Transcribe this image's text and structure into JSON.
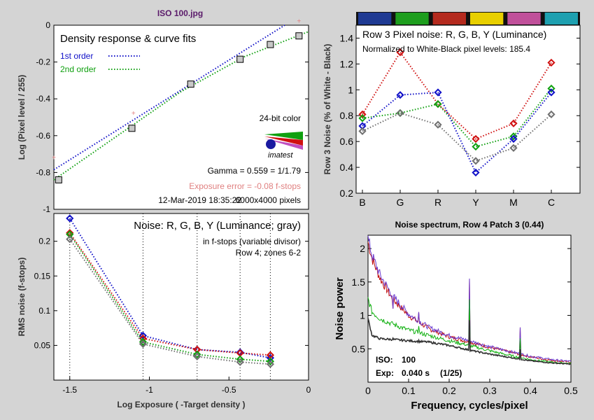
{
  "window_title": "ISO 100.jpg",
  "chart_data": [
    {
      "id": "density",
      "type": "line",
      "title": "Density response & curve fits",
      "xlabel": "",
      "ylabel": "Log (Pixel level / 255)",
      "xlim": [
        -1.6,
        0.0
      ],
      "ylim": [
        -1.0,
        0.0
      ],
      "yticks": [
        0,
        -0.2,
        -0.4,
        -0.6,
        -0.8,
        -1
      ],
      "ytick_labels": [
        "0",
        "-0.2",
        "-0.4",
        "-0.6",
        "-0.8",
        "-1"
      ],
      "legend": [
        {
          "label": "1st order",
          "color": "#1010c8"
        },
        {
          "label": "2nd order",
          "color": "#10a010"
        }
      ],
      "series": [
        {
          "name": "measured",
          "x": [
            -1.57,
            -1.11,
            -0.74,
            -0.43,
            -0.24,
            -0.06
          ],
          "y": [
            -0.84,
            -0.56,
            -0.32,
            -0.185,
            -0.105,
            -0.058
          ]
        },
        {
          "name": "ideal",
          "x": [
            -1.6,
            -1.1,
            -0.06
          ],
          "y": [
            -0.72,
            -0.48,
            0.02
          ]
        },
        {
          "name": "1st order",
          "x": [
            -1.6,
            -0.15
          ],
          "y": [
            -0.785,
            0.0
          ]
        },
        {
          "name": "2nd order",
          "x": [
            -1.6,
            -1.2,
            -0.8,
            -0.4,
            0.0
          ],
          "y": [
            -0.84,
            -0.6,
            -0.36,
            -0.17,
            -0.035
          ]
        }
      ],
      "annotations": {
        "bit_depth": "24-bit color",
        "gamma": "Gamma = 0.559 = 1/1.79",
        "exposure_error": "Exposure error = -0.08 f-stops",
        "datetime": "12-Mar-2019 18:35:22",
        "pixels": "6000x4000 pixels"
      },
      "logo_text": "imatest"
    },
    {
      "id": "row3",
      "type": "line",
      "title": "Row 3 Pixel noise: R, G, B, Y (Luminance)",
      "subtitle": "Normalized to White-Black pixel levels: 185.4",
      "ylabel": "Row 3 Noise (% of White - Black)",
      "categories": [
        "B",
        "G",
        "R",
        "Y",
        "M",
        "C"
      ],
      "ylim": [
        0.2,
        1.5
      ],
      "yticks": [
        0.2,
        0.4,
        0.6,
        0.8,
        1,
        1.2,
        1.4
      ],
      "ytick_labels": [
        "0.2",
        "0.4",
        "0.6",
        "0.8",
        "1",
        "1.2",
        "1.4"
      ],
      "patch_colors": [
        "#1f3a93",
        "#1e9e1e",
        "#b42a1e",
        "#e8cf00",
        "#c0509a",
        "#1ea0b0"
      ],
      "series": [
        {
          "name": "R",
          "color": "#d01010",
          "values": [
            0.81,
            1.29,
            0.89,
            0.62,
            0.74,
            1.21
          ]
        },
        {
          "name": "G",
          "color": "#10a010",
          "values": [
            0.78,
            0.82,
            0.89,
            0.56,
            0.64,
            1.01
          ]
        },
        {
          "name": "B",
          "color": "#1010c8",
          "values": [
            0.72,
            0.96,
            0.98,
            0.36,
            0.62,
            0.98
          ]
        },
        {
          "name": "Y",
          "color": "#707070",
          "values": [
            0.68,
            0.82,
            0.73,
            0.45,
            0.55,
            0.81
          ]
        }
      ]
    },
    {
      "id": "noise",
      "type": "line",
      "title": "Noise: R, G, B, Y (Luminance; gray)",
      "subtitle1": "in f-stops (variable divisor)",
      "subtitle2": "Row 4; zones 6-2",
      "xlabel": "Log Exposure ( -Target density )",
      "ylabel": "RMS noise (f-stops)",
      "xlim": [
        -1.6,
        0.0
      ],
      "ylim": [
        0.0,
        0.24
      ],
      "xticks": [
        -1.5,
        -1,
        -0.5,
        0
      ],
      "xtick_labels": [
        "-1.5",
        "-1",
        "-0.5",
        "0"
      ],
      "yticks": [
        0.05,
        0.1,
        0.15,
        0.2
      ],
      "ytick_labels": [
        "0.05",
        "0.1",
        "0.15",
        "0.2"
      ],
      "x": [
        -1.5,
        -1.04,
        -0.7,
        -0.43,
        -0.24
      ],
      "series": [
        {
          "name": "B",
          "color": "#1010c8",
          "values": [
            0.233,
            0.064,
            0.044,
            0.04,
            0.032
          ]
        },
        {
          "name": "R",
          "color": "#d01010",
          "values": [
            0.212,
            0.06,
            0.044,
            0.039,
            0.036
          ]
        },
        {
          "name": "G",
          "color": "#10a010",
          "values": [
            0.21,
            0.055,
            0.037,
            0.03,
            0.027
          ]
        },
        {
          "name": "Y",
          "color": "#707070",
          "values": [
            0.203,
            0.052,
            0.034,
            0.026,
            0.023
          ]
        }
      ]
    },
    {
      "id": "spectrum",
      "type": "line",
      "title": "Noise spectrum, Row 4 Patch 3 (0.44)",
      "xlabel": "Frequency, cycles/pixel",
      "ylabel": "Noise power",
      "xlim": [
        0,
        0.5
      ],
      "ylim": [
        0,
        2.2
      ],
      "xticks": [
        0,
        0.1,
        0.2,
        0.3,
        0.4,
        0.5
      ],
      "xtick_labels": [
        "0",
        "0.1",
        "0.2",
        "0.3",
        "0.4",
        "0.5"
      ],
      "yticks": [
        0.5,
        1,
        1.5,
        2
      ],
      "ytick_labels": [
        "0.5",
        "1",
        "1.5",
        "2"
      ],
      "info": {
        "iso_label": "ISO:",
        "iso_value": "100",
        "exp_label": "Exp:",
        "exp_value": "0.040 s",
        "exp_fraction": "(1/25)"
      },
      "series": [
        {
          "name": "R",
          "color": "#c01010",
          "x": [
            0,
            0.01,
            0.03,
            0.06,
            0.1,
            0.15,
            0.2,
            0.25,
            0.3,
            0.35,
            0.4,
            0.45,
            0.5
          ],
          "y": [
            2.1,
            1.85,
            1.55,
            1.25,
            1.0,
            0.8,
            0.68,
            0.6,
            0.52,
            0.45,
            0.38,
            0.33,
            0.3
          ]
        },
        {
          "name": "B",
          "color": "#6a3ad0",
          "x": [
            0,
            0.01,
            0.03,
            0.06,
            0.1,
            0.15,
            0.2,
            0.25,
            0.3,
            0.35,
            0.4,
            0.45,
            0.5
          ],
          "y": [
            2.15,
            1.9,
            1.6,
            1.3,
            1.02,
            0.82,
            0.7,
            0.62,
            0.53,
            0.46,
            0.39,
            0.34,
            0.31
          ]
        },
        {
          "name": "G",
          "color": "#10b010",
          "x": [
            0,
            0.01,
            0.03,
            0.06,
            0.1,
            0.15,
            0.2,
            0.25,
            0.3,
            0.35,
            0.4,
            0.45,
            0.5
          ],
          "y": [
            1.25,
            1.05,
            0.95,
            0.87,
            0.78,
            0.7,
            0.62,
            0.55,
            0.47,
            0.4,
            0.34,
            0.3,
            0.28
          ]
        },
        {
          "name": "Y",
          "color": "#303030",
          "x": [
            0,
            0.01,
            0.03,
            0.06,
            0.1,
            0.15,
            0.2,
            0.25,
            0.3,
            0.35,
            0.4,
            0.45,
            0.5
          ],
          "y": [
            0.95,
            0.7,
            0.65,
            0.64,
            0.62,
            0.6,
            0.55,
            0.48,
            0.42,
            0.37,
            0.32,
            0.29,
            0.27
          ]
        }
      ],
      "spikes": [
        {
          "x": 0.062,
          "y": 1.1
        },
        {
          "x": 0.125,
          "y": 1.05
        },
        {
          "x": 0.25,
          "y": 1.55
        },
        {
          "x": 0.375,
          "y": 0.82
        }
      ]
    }
  ]
}
